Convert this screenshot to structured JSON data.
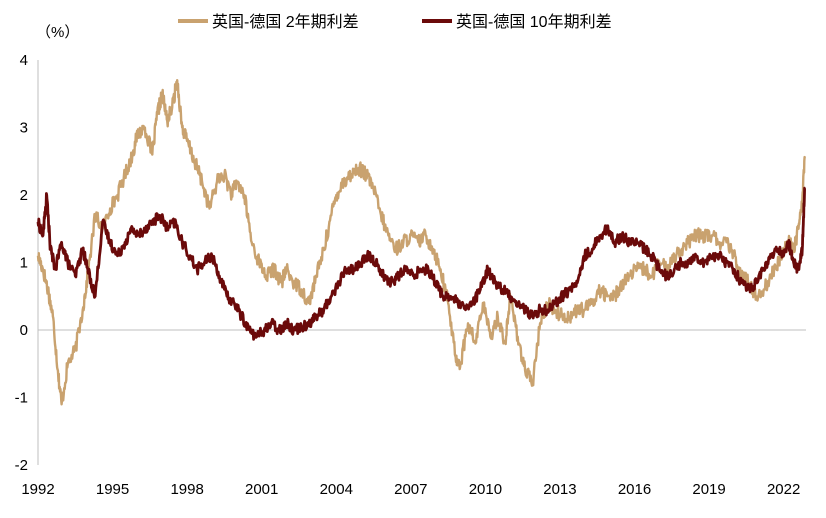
{
  "chart_data": {
    "type": "line",
    "unit_label": "（%）",
    "x_ticks": [
      "1992",
      "1995",
      "1998",
      "2001",
      "2004",
      "2007",
      "2010",
      "2013",
      "2016",
      "2019",
      "2022"
    ],
    "x_range": [
      1992,
      2022.9
    ],
    "ylim": [
      -2,
      4
    ],
    "y_ticks": [
      "4",
      "3",
      "2",
      "1",
      "0",
      "-1",
      "-2"
    ],
    "y_tick_values": [
      4,
      3,
      2,
      1,
      0,
      -1,
      -2
    ],
    "grid": false,
    "legend_position": "top",
    "series": [
      {
        "name": "英国-德国 2年期利差",
        "color": "#c9a26f",
        "x": [
          1992.0,
          1992.2,
          1992.4,
          1992.6,
          1992.8,
          1992.95,
          1993.2,
          1993.5,
          1993.8,
          1994.0,
          1994.3,
          1994.6,
          1994.9,
          1995.2,
          1995.5,
          1995.8,
          1996.0,
          1996.3,
          1996.6,
          1996.8,
          1997.0,
          1997.2,
          1997.4,
          1997.6,
          1997.8,
          1998.0,
          1998.3,
          1998.6,
          1998.9,
          1999.2,
          1999.5,
          1999.8,
          2000.0,
          2000.3,
          2000.6,
          2000.9,
          2001.2,
          2001.5,
          2001.8,
          2002.0,
          2002.3,
          2002.6,
          2002.9,
          2003.2,
          2003.5,
          2003.8,
          2004.0,
          2004.3,
          2004.6,
          2004.9,
          2005.2,
          2005.5,
          2005.8,
          2006.1,
          2006.4,
          2006.7,
          2007.0,
          2007.3,
          2007.6,
          2007.9,
          2008.2,
          2008.5,
          2008.8,
          2009.0,
          2009.3,
          2009.6,
          2009.9,
          2010.2,
          2010.5,
          2010.8,
          2011.0,
          2011.3,
          2011.6,
          2011.9,
          2012.2,
          2012.5,
          2012.8,
          2013.1,
          2013.4,
          2013.7,
          2014.0,
          2014.3,
          2014.6,
          2014.9,
          2015.2,
          2015.5,
          2015.8,
          2016.1,
          2016.4,
          2016.7,
          2017.0,
          2017.3,
          2017.6,
          2017.9,
          2018.2,
          2018.5,
          2018.8,
          2019.1,
          2019.4,
          2019.7,
          2020.0,
          2020.3,
          2020.6,
          2020.9,
          2021.2,
          2021.5,
          2021.8,
          2022.0,
          2022.2,
          2022.4,
          2022.6,
          2022.75,
          2022.85
        ],
        "y": [
          1.1,
          0.9,
          0.6,
          0.2,
          -0.6,
          -1.1,
          -0.5,
          -0.3,
          0.3,
          0.8,
          1.7,
          1.5,
          1.8,
          2.0,
          2.3,
          2.6,
          2.9,
          3.0,
          2.6,
          3.2,
          3.5,
          3.1,
          3.3,
          3.7,
          3.0,
          2.8,
          2.5,
          2.2,
          1.8,
          2.2,
          2.3,
          2.0,
          2.2,
          2.0,
          1.3,
          1.0,
          0.8,
          0.9,
          0.7,
          0.9,
          0.7,
          0.6,
          0.4,
          0.8,
          1.2,
          1.7,
          2.0,
          2.2,
          2.3,
          2.4,
          2.3,
          2.1,
          1.7,
          1.4,
          1.2,
          1.3,
          1.4,
          1.3,
          1.4,
          1.2,
          0.9,
          0.4,
          -0.4,
          -0.5,
          0.1,
          -0.2,
          0.4,
          -0.1,
          0.2,
          -0.2,
          0.5,
          -0.1,
          -0.6,
          -0.8,
          0.1,
          0.4,
          0.3,
          0.2,
          0.2,
          0.3,
          0.3,
          0.4,
          0.6,
          0.5,
          0.5,
          0.7,
          0.8,
          0.9,
          0.9,
          0.8,
          1.0,
          0.9,
          1.1,
          1.2,
          1.3,
          1.4,
          1.4,
          1.4,
          1.3,
          1.3,
          1.1,
          0.8,
          0.7,
          0.5,
          0.6,
          0.8,
          1.0,
          1.2,
          1.3,
          1.2,
          1.5,
          1.9,
          2.55
        ]
      },
      {
        "name": "英国-德国 10年期利差",
        "color": "#6b0a0a",
        "x": [
          1992.0,
          1992.2,
          1992.35,
          1992.5,
          1992.7,
          1992.95,
          1993.2,
          1993.5,
          1993.8,
          1994.0,
          1994.3,
          1994.6,
          1994.9,
          1995.2,
          1995.5,
          1995.8,
          1996.0,
          1996.3,
          1996.6,
          1996.9,
          1997.2,
          1997.5,
          1997.8,
          1998.1,
          1998.4,
          1998.7,
          1999.0,
          1999.3,
          1999.6,
          1999.9,
          2000.2,
          2000.5,
          2000.8,
          2001.1,
          2001.4,
          2001.7,
          2002.0,
          2002.3,
          2002.6,
          2002.9,
          2003.2,
          2003.5,
          2003.8,
          2004.1,
          2004.4,
          2004.7,
          2005.0,
          2005.3,
          2005.6,
          2005.9,
          2006.2,
          2006.5,
          2006.8,
          2007.1,
          2007.4,
          2007.7,
          2008.0,
          2008.3,
          2008.6,
          2008.9,
          2009.2,
          2009.5,
          2009.8,
          2010.1,
          2010.4,
          2010.7,
          2011.0,
          2011.3,
          2011.6,
          2011.9,
          2012.2,
          2012.5,
          2012.8,
          2013.1,
          2013.4,
          2013.7,
          2014.0,
          2014.3,
          2014.6,
          2014.9,
          2015.2,
          2015.5,
          2015.8,
          2016.1,
          2016.4,
          2016.7,
          2017.0,
          2017.3,
          2017.6,
          2017.9,
          2018.2,
          2018.5,
          2018.8,
          2019.1,
          2019.4,
          2019.7,
          2020.0,
          2020.3,
          2020.6,
          2020.9,
          2021.2,
          2021.5,
          2021.8,
          2022.0,
          2022.2,
          2022.4,
          2022.6,
          2022.75,
          2022.85
        ],
        "y": [
          1.6,
          1.4,
          2.0,
          1.2,
          0.9,
          1.3,
          1.0,
          0.8,
          1.2,
          0.9,
          0.5,
          1.6,
          1.3,
          1.1,
          1.3,
          1.5,
          1.4,
          1.5,
          1.6,
          1.7,
          1.5,
          1.6,
          1.3,
          1.1,
          0.9,
          1.0,
          1.1,
          0.8,
          0.5,
          0.4,
          0.2,
          0.0,
          -0.1,
          0.0,
          0.1,
          0.0,
          0.1,
          0.0,
          0.05,
          0.1,
          0.2,
          0.3,
          0.5,
          0.7,
          0.9,
          0.9,
          1.0,
          1.1,
          1.0,
          0.8,
          0.7,
          0.8,
          0.9,
          0.8,
          0.9,
          0.9,
          0.7,
          0.5,
          0.5,
          0.4,
          0.3,
          0.4,
          0.6,
          0.9,
          0.7,
          0.6,
          0.5,
          0.4,
          0.3,
          0.2,
          0.3,
          0.3,
          0.4,
          0.5,
          0.6,
          0.7,
          1.1,
          1.2,
          1.4,
          1.5,
          1.3,
          1.4,
          1.3,
          1.3,
          1.2,
          1.1,
          0.9,
          0.8,
          0.9,
          1.0,
          1.0,
          1.1,
          1.0,
          1.1,
          1.1,
          1.0,
          0.9,
          0.7,
          0.6,
          0.7,
          0.9,
          1.1,
          1.2,
          1.1,
          1.3,
          1.0,
          0.9,
          1.2,
          2.1
        ]
      }
    ]
  }
}
